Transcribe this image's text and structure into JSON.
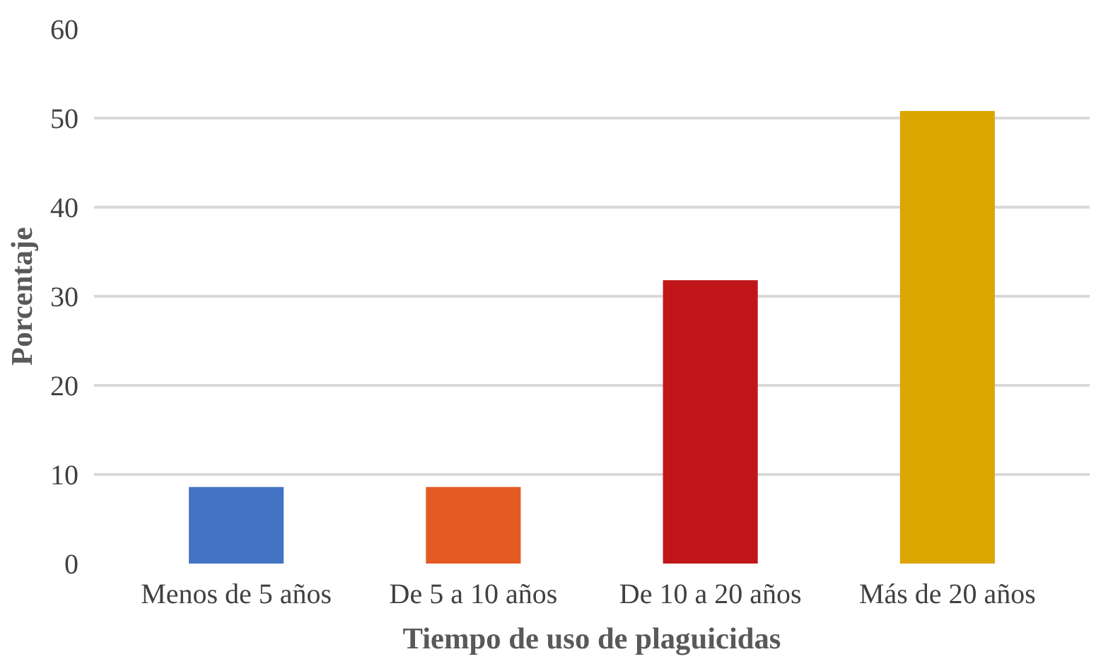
{
  "chart_data": {
    "type": "bar",
    "xlabel": "Tiempo de uso de plaguicidas",
    "ylabel": "Porcentaje",
    "categories": [
      "Menos de 5 años",
      "De 5 a 10 años",
      "De 10 a 20 años",
      "Más de 20 años"
    ],
    "values": [
      8.6,
      8.6,
      31.8,
      50.8
    ],
    "colors": [
      "#4472c4",
      "#e35a24",
      "#c0161a",
      "#dba600"
    ],
    "ylim": [
      0,
      60
    ],
    "yticks": [
      0,
      10,
      20,
      30,
      40,
      50,
      60
    ],
    "grid": "y"
  }
}
